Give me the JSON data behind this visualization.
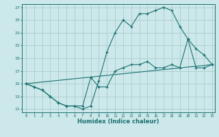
{
  "xlabel": "Humidex (Indice chaleur)",
  "bg_color": "#cce8ea",
  "grid_color": "#aacccc",
  "line_color": "#1a7070",
  "xlim": [
    0,
    23
  ],
  "ylim": [
    11,
    27
  ],
  "xticks": [
    0,
    1,
    2,
    3,
    4,
    5,
    6,
    7,
    8,
    9,
    10,
    11,
    12,
    13,
    14,
    15,
    16,
    17,
    18,
    19,
    20,
    21,
    22,
    23
  ],
  "yticks": [
    11,
    13,
    15,
    17,
    19,
    21,
    23,
    25,
    27
  ],
  "line1_x": [
    0,
    1,
    2,
    3,
    4,
    5,
    6,
    7,
    8,
    9,
    10,
    11,
    12,
    13,
    14,
    15,
    16,
    17,
    18,
    19,
    20,
    21,
    22,
    23
  ],
  "line1_y": [
    15.0,
    14.5,
    14.0,
    13.0,
    12.0,
    11.5,
    11.5,
    11.5,
    16.0,
    14.5,
    14.5,
    17.0,
    17.5,
    18.0,
    18.0,
    18.5,
    17.5,
    17.5,
    18.0,
    17.5,
    22.0,
    17.5,
    17.5,
    18.0
  ],
  "line2_x": [
    0,
    23
  ],
  "line2_y": [
    15.0,
    18.0
  ],
  "line3_x": [
    0,
    1,
    2,
    3,
    4,
    5,
    6,
    7,
    8,
    9,
    10,
    11,
    12,
    13,
    14,
    15,
    16,
    17,
    18,
    19,
    20,
    21,
    22,
    23
  ],
  "line3_y": [
    15.0,
    14.5,
    14.0,
    13.0,
    12.0,
    11.5,
    11.5,
    11.0,
    11.5,
    15.5,
    20.0,
    23.0,
    25.0,
    24.0,
    26.0,
    26.0,
    26.5,
    27.0,
    26.5,
    24.0,
    22.0,
    20.5,
    19.5,
    18.0
  ]
}
